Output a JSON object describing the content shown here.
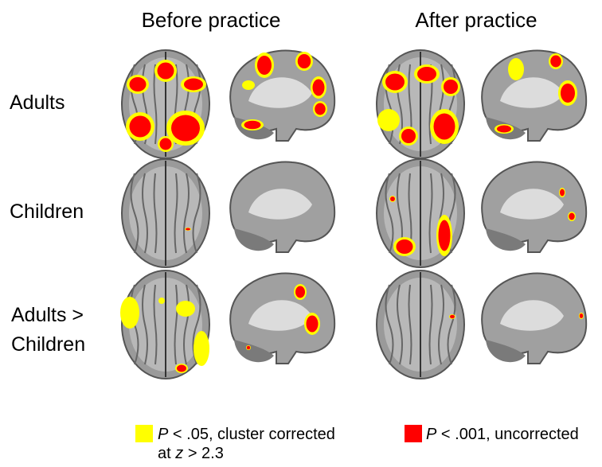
{
  "columns": [
    "Before practice",
    "After practice"
  ],
  "rows": [
    {
      "lines": [
        "Adults"
      ]
    },
    {
      "lines": [
        "Children"
      ]
    },
    {
      "lines": [
        "Adults >",
        "Children"
      ]
    }
  ],
  "legend": [
    {
      "lines": [
        [
          "P",
          "< .05, cluster corrected"
        ],
        [
          "at",
          "z",
          "> 2.3"
        ]
      ]
    },
    {
      "lines": [
        [
          "P",
          "< .001, uncorrected"
        ]
      ]
    }
  ]
}
